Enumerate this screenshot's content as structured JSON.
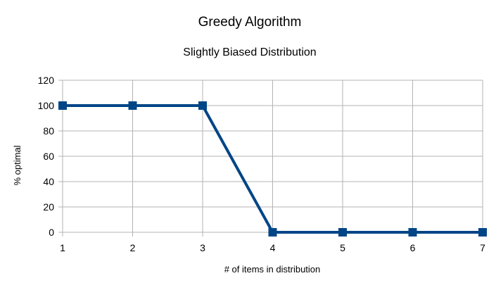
{
  "chart_data": {
    "type": "line",
    "title": "Greedy Algorithm",
    "subtitle": "Slightly Biased Distribution",
    "xlabel": "# of items in distribution",
    "ylabel": "% optimal",
    "x": [
      1,
      2,
      3,
      4,
      5,
      6,
      7
    ],
    "x_tick_labels": [
      "1",
      "2",
      "3",
      "4",
      "5",
      "6",
      "7"
    ],
    "y_tick_labels": [
      "0",
      "20",
      "40",
      "60",
      "80",
      "100",
      "120"
    ],
    "y_ticks": [
      0,
      20,
      40,
      60,
      80,
      100,
      120
    ],
    "ylim": [
      0,
      120
    ],
    "xlim": [
      1,
      7
    ],
    "grid": true,
    "legend": "none",
    "series": [
      {
        "values": [
          100,
          100,
          100,
          0,
          0,
          0,
          0
        ],
        "color": "#004586",
        "marker": "square"
      }
    ]
  }
}
